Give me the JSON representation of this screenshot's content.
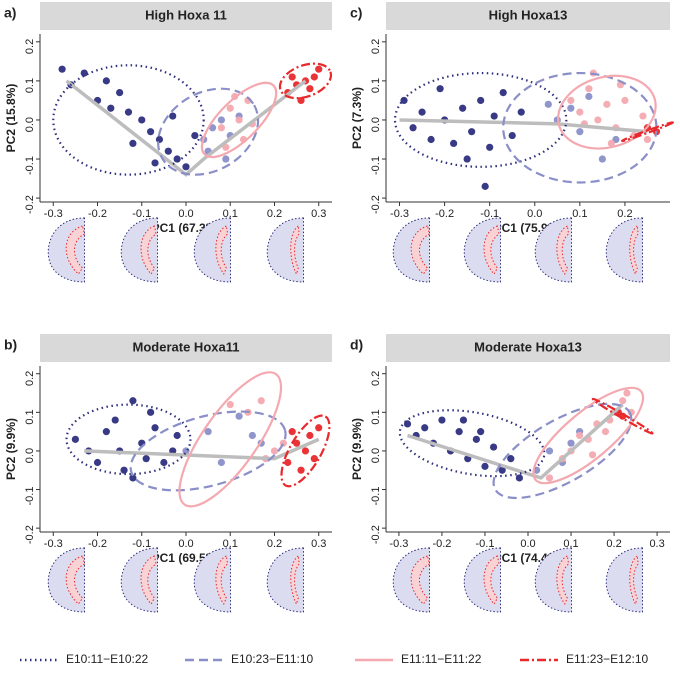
{
  "chart_data": [
    {
      "type": "scatter",
      "panel": "a)",
      "title": "High Hoxa 11",
      "xlabel": "PC1 (67.3%)",
      "ylabel": "PC2 (15.8%)",
      "xlim": [
        -0.33,
        0.33
      ],
      "ylim": [
        -0.21,
        0.22
      ],
      "xticks": [
        -0.3,
        -0.2,
        -0.1,
        {
          "value": 0,
          "label": "0.0"
        },
        0.1,
        0.2,
        0.3
      ],
      "yticks": [
        -0.2,
        -0.1,
        {
          "value": 0,
          "label": "0.0"
        },
        0.1,
        0.2
      ],
      "trend": {
        "x": [
          -0.27,
          0.0,
          0.04,
          0.27
        ],
        "y": [
          0.1,
          -0.14,
          -0.1,
          0.1
        ]
      },
      "series": [
        {
          "name": "E10:11−E10:22",
          "color": "#2e2f7e",
          "line_style": "dotted",
          "x": [
            -0.28,
            -0.26,
            -0.23,
            -0.2,
            -0.18,
            -0.17,
            -0.15,
            -0.13,
            -0.1,
            -0.08,
            -0.06,
            -0.04,
            -0.02,
            0.0,
            -0.12,
            -0.07,
            0.02,
            -0.03
          ],
          "values": [
            0.13,
            0.09,
            0.12,
            0.05,
            0.1,
            0.03,
            0.07,
            0.02,
            0.0,
            -0.03,
            -0.05,
            -0.08,
            -0.1,
            -0.12,
            -0.06,
            -0.11,
            -0.04,
            0.01
          ],
          "ellipse": {
            "center": [
              -0.13,
              0.0
            ],
            "radii": [
              0.17,
              0.14
            ],
            "angle": 0
          }
        },
        {
          "name": "E10:23−E11:10",
          "color": "#8a8fc8",
          "line_style": "dashed",
          "x": [
            0.04,
            0.06,
            0.08,
            0.1,
            0.12,
            0.05,
            0.09
          ],
          "values": [
            -0.05,
            -0.02,
            0.0,
            -0.04,
            0.01,
            -0.08,
            -0.1
          ],
          "ellipse": {
            "center": [
              0.05,
              -0.03
            ],
            "radii": [
              0.12,
              0.1
            ],
            "angle": -30
          }
        },
        {
          "name": "E11:11−E11:22",
          "color": "#f4a9b0",
          "line_style": "solid",
          "x": [
            0.08,
            0.1,
            0.12,
            0.14,
            0.15,
            0.11,
            0.13,
            0.09
          ],
          "values": [
            -0.02,
            0.03,
            0.0,
            0.05,
            -0.01,
            0.06,
            -0.05,
            -0.07
          ],
          "ellipse": {
            "center": [
              0.12,
              0.0
            ],
            "radii": [
              0.11,
              0.05
            ],
            "angle": -45
          }
        },
        {
          "name": "E11:23−E12:10",
          "color": "#e8282b",
          "line_style": "dashdot",
          "x": [
            0.23,
            0.25,
            0.27,
            0.29,
            0.26,
            0.3,
            0.28,
            0.24
          ],
          "values": [
            0.07,
            0.09,
            0.1,
            0.11,
            0.05,
            0.13,
            0.08,
            0.11
          ],
          "ellipse": {
            "center": [
              0.27,
              0.1
            ],
            "radii": [
              0.06,
              0.04
            ],
            "angle": -20
          }
        }
      ]
    },
    {
      "type": "scatter",
      "panel": "b)",
      "title": "Moderate Hoxa11",
      "xlabel": "PC1 (69.5%)",
      "ylabel": "PC2 (9.9%)",
      "xlim": [
        -0.33,
        0.33
      ],
      "ylim": [
        -0.21,
        0.22
      ],
      "xticks": [
        -0.3,
        -0.2,
        -0.1,
        {
          "value": 0,
          "label": "0.0"
        },
        0.1,
        0.2,
        0.3
      ],
      "yticks": [
        -0.2,
        -0.1,
        {
          "value": 0,
          "label": "0.0"
        },
        0.1,
        0.2
      ],
      "trend": {
        "x": [
          -0.23,
          0.2,
          0.3
        ],
        "y": [
          0.0,
          -0.02,
          0.03
        ]
      },
      "series": [
        {
          "name": "E10:11−E10:22",
          "color": "#2e2f7e",
          "line_style": "dotted",
          "x": [
            -0.25,
            -0.22,
            -0.2,
            -0.18,
            -0.16,
            -0.14,
            -0.12,
            -0.1,
            -0.09,
            -0.07,
            -0.05,
            -0.03,
            -0.12,
            -0.15,
            -0.08,
            -0.02
          ],
          "values": [
            0.03,
            0.0,
            -0.03,
            0.05,
            0.08,
            -0.05,
            0.13,
            0.02,
            -0.02,
            0.06,
            -0.03,
            0.0,
            -0.07,
            0.0,
            0.1,
            0.04
          ],
          "ellipse": {
            "center": [
              -0.13,
              0.03
            ],
            "radii": [
              0.14,
              0.09
            ],
            "angle": 0
          }
        },
        {
          "name": "E10:23−E11:10",
          "color": "#8a8fc8",
          "line_style": "dashed",
          "x": [
            0.0,
            0.05,
            0.08,
            0.12,
            0.15,
            0.17
          ],
          "values": [
            0.0,
            0.05,
            -0.03,
            0.09,
            0.04,
            0.02
          ],
          "ellipse": {
            "center": [
              0.05,
              0.0
            ],
            "radii": [
              0.18,
              0.09
            ],
            "angle": -15
          }
        },
        {
          "name": "E11:11−E11:22",
          "color": "#f4a9b0",
          "line_style": "solid",
          "x": [
            0.1,
            0.14,
            0.17,
            0.2,
            0.22,
            0.18
          ],
          "values": [
            0.12,
            0.1,
            0.13,
            0.0,
            0.02,
            -0.02
          ],
          "ellipse": {
            "center": [
              0.1,
              0.03
            ],
            "radii": [
              0.18,
              0.07
            ],
            "angle": -55
          }
        },
        {
          "name": "E11:23−E12:10",
          "color": "#e8282b",
          "line_style": "dashdot",
          "x": [
            0.23,
            0.25,
            0.27,
            0.28,
            0.26,
            0.3,
            0.29,
            0.24
          ],
          "values": [
            -0.03,
            0.02,
            0.0,
            0.04,
            -0.05,
            0.06,
            -0.02,
            0.05
          ],
          "ellipse": {
            "center": [
              0.27,
              0.0
            ],
            "radii": [
              0.09,
              0.04
            ],
            "angle": -60
          }
        }
      ]
    },
    {
      "type": "scatter",
      "panel": "c)",
      "title": "High Hoxa13",
      "xlabel": "PC1 (75.9%)",
      "ylabel": "PC2 (7.3%)",
      "xlim": [
        -0.33,
        0.3
      ],
      "ylim": [
        -0.21,
        0.22
      ],
      "xticks": [
        -0.3,
        -0.2,
        -0.1,
        {
          "value": 0,
          "label": "0.0"
        },
        0.1,
        0.2
      ],
      "yticks": [
        -0.2,
        -0.1,
        {
          "value": 0,
          "label": "0.0"
        },
        0.1,
        0.2
      ],
      "trend": {
        "x": [
          -0.3,
          0.05,
          0.25
        ],
        "y": [
          0.0,
          -0.01,
          -0.03
        ]
      },
      "series": [
        {
          "name": "E10:11−E10:22",
          "color": "#2e2f7e",
          "line_style": "dotted",
          "x": [
            -0.29,
            -0.27,
            -0.25,
            -0.23,
            -0.21,
            -0.2,
            -0.18,
            -0.16,
            -0.14,
            -0.12,
            -0.1,
            -0.09,
            -0.07,
            -0.05,
            -0.03,
            -0.15,
            -0.11
          ],
          "values": [
            0.05,
            -0.02,
            0.02,
            -0.05,
            0.08,
            0.0,
            -0.06,
            0.03,
            -0.03,
            0.05,
            -0.07,
            0.01,
            0.07,
            -0.04,
            0.02,
            -0.1,
            -0.17
          ],
          "ellipse": {
            "center": [
              -0.12,
              0.0
            ],
            "radii": [
              0.19,
              0.12
            ],
            "angle": 0
          }
        },
        {
          "name": "E10:23−E11:10",
          "color": "#8a8fc8",
          "line_style": "dashed",
          "x": [
            0.05,
            0.08,
            0.1,
            0.15,
            0.03,
            0.12,
            0.18
          ],
          "values": [
            0.0,
            0.03,
            -0.03,
            -0.1,
            0.04,
            0.06,
            -0.05
          ],
          "ellipse": {
            "center": [
              0.1,
              -0.02
            ],
            "radii": [
              0.17,
              0.14
            ],
            "angle": 0
          }
        },
        {
          "name": "E11:11−E11:22",
          "color": "#f4a9b0",
          "line_style": "solid",
          "x": [
            0.08,
            0.1,
            0.12,
            0.14,
            0.16,
            0.18,
            0.2,
            0.22,
            0.24,
            0.13,
            0.17,
            0.11,
            0.19,
            0.25
          ],
          "values": [
            0.05,
            0.02,
            0.08,
            0.0,
            0.04,
            -0.02,
            0.05,
            -0.04,
            0.01,
            0.12,
            -0.06,
            -0.01,
            0.09,
            -0.05
          ],
          "ellipse": {
            "center": [
              0.16,
              0.02
            ],
            "radii": [
              0.11,
              0.09
            ],
            "angle": -15
          }
        },
        {
          "name": "E11:23−E12:10",
          "color": "#e8282b",
          "line_style": "dashdot",
          "x": [
            0.25,
            0.27
          ],
          "values": [
            -0.02,
            -0.03
          ],
          "ellipse": {
            "center": [
              0.25,
              -0.03
            ],
            "radii": [
              0.06,
              0.003
            ],
            "angle": -20
          }
        }
      ]
    },
    {
      "type": "scatter",
      "panel": "d)",
      "title": "Moderate Hoxa13",
      "xlabel": "PC1 (74.4%)",
      "ylabel": "PC2 (9.9%)",
      "xlim": [
        -0.33,
        0.33
      ],
      "ylim": [
        -0.21,
        0.22
      ],
      "xticks": [
        -0.3,
        -0.2,
        -0.1,
        {
          "value": 0,
          "label": "0.0"
        },
        0.1,
        0.2,
        0.3
      ],
      "yticks": [
        -0.2,
        -0.1,
        {
          "value": 0,
          "label": "0.0"
        },
        0.1,
        0.2
      ],
      "trend": {
        "x": [
          -0.28,
          0.03,
          0.22
        ],
        "y": [
          0.04,
          -0.07,
          0.12
        ]
      },
      "series": [
        {
          "name": "E10:11−E10:22",
          "color": "#2e2f7e",
          "line_style": "dotted",
          "x": [
            -0.28,
            -0.26,
            -0.24,
            -0.22,
            -0.2,
            -0.18,
            -0.16,
            -0.14,
            -0.12,
            -0.1,
            -0.08,
            -0.06,
            -0.04,
            -0.15,
            -0.11,
            -0.02
          ],
          "values": [
            0.07,
            0.04,
            0.06,
            0.02,
            0.08,
            0.0,
            0.05,
            -0.02,
            0.03,
            -0.04,
            0.01,
            -0.05,
            -0.02,
            0.08,
            0.05,
            -0.07
          ],
          "ellipse": {
            "center": [
              -0.13,
              0.02
            ],
            "radii": [
              0.17,
              0.08
            ],
            "angle": 10
          }
        },
        {
          "name": "E10:23−E11:10",
          "color": "#8a8fc8",
          "line_style": "dashed",
          "x": [
            0.02,
            0.05,
            0.08,
            0.1,
            0.12
          ],
          "values": [
            -0.05,
            0.0,
            -0.03,
            0.02,
            0.05
          ],
          "ellipse": {
            "center": [
              0.08,
              0.0
            ],
            "radii": [
              0.18,
              0.08
            ],
            "angle": -30
          }
        },
        {
          "name": "E11:11−E11:22",
          "color": "#f4a9b0",
          "line_style": "solid",
          "x": [
            0.05,
            0.08,
            0.1,
            0.12,
            0.14,
            0.16,
            0.18,
            0.2,
            0.22,
            0.24,
            0.15,
            0.19,
            0.23
          ],
          "values": [
            -0.07,
            -0.02,
            0.0,
            0.04,
            0.03,
            0.07,
            0.05,
            0.1,
            0.13,
            0.1,
            -0.01,
            0.08,
            0.15
          ],
          "ellipse": {
            "center": [
              0.14,
              0.04
            ],
            "radii": [
              0.16,
              0.06
            ],
            "angle": -40
          }
        },
        {
          "name": "E11:23−E12:10",
          "color": "#e8282b",
          "line_style": "dashdot",
          "x": [
            0.21,
            0.22
          ],
          "values": [
            0.1,
            0.09
          ],
          "ellipse": {
            "center": [
              0.22,
              0.09
            ],
            "radii": [
              0.08,
              0.005
            ],
            "angle": 30
          }
        }
      ]
    }
  ]
}
